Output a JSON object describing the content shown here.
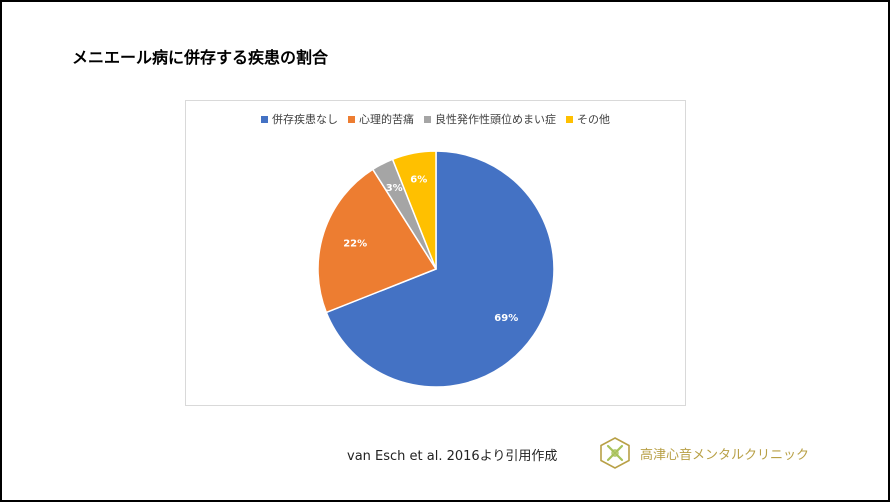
{
  "title": "メニエール病に併存する疾患の割合",
  "source_text": "van Esch et al. 2016より引用作成",
  "logo_text": "高津心音メンタルクリニック",
  "colors": {
    "slide_border": "#000000",
    "logo": "#b8a046"
  },
  "chart_data": {
    "type": "pie",
    "categories": [
      "併存疾患なし",
      "心理的苦痛",
      "良性発作性頭位めまい症",
      "その他"
    ],
    "values": [
      69,
      22,
      3,
      6
    ],
    "labels": [
      "69%",
      "22%",
      "3%",
      "6%"
    ],
    "colors": [
      "#4472c4",
      "#ed7d31",
      "#a5a5a5",
      "#ffc000"
    ],
    "legend_position": "top"
  }
}
